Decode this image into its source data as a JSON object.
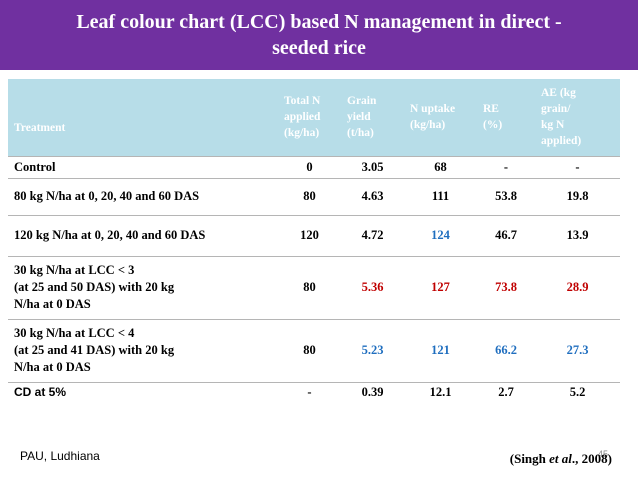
{
  "title": {
    "line1": "Leaf colour chart (LCC) based N management in direct -",
    "line2": "seeded rice"
  },
  "colors": {
    "banner": "#7030a0",
    "header_bg": "#b7dde8",
    "highlight_blue": "#1f6ebf",
    "highlight_red": "#c00000"
  },
  "table": {
    "headers": {
      "treatment": "Treatment",
      "total_n": [
        "Total N",
        "applied",
        "(kg/ha)"
      ],
      "grain_yield": [
        "Grain",
        "yield",
        "(t/ha)"
      ],
      "n_uptake": [
        "N uptake",
        "(kg/ha)"
      ],
      "re": [
        "RE",
        "(%)"
      ],
      "ae": [
        "AE (kg",
        "grain/",
        "kg N",
        "applied)"
      ]
    },
    "rows": [
      {
        "treatment": [
          "Control"
        ],
        "total_n": "0",
        "grain_yield": "3.05",
        "n_uptake": "68",
        "re": "-",
        "ae": "-"
      },
      {
        "treatment": [
          "80 kg N/ha at 0, 20, 40 and 60 DAS"
        ],
        "total_n": "80",
        "grain_yield": "4.63",
        "n_uptake": "111",
        "re": "53.8",
        "ae": "19.8"
      },
      {
        "treatment": [
          "120 kg N/ha at 0, 20, 40 and 60 DAS"
        ],
        "total_n": "120",
        "grain_yield": "4.72",
        "n_uptake": "124",
        "re": "46.7",
        "ae": "13.9"
      },
      {
        "treatment": [
          "30 kg N/ha at LCC < 3",
          "(at 25 and 50 DAS) with 20 kg",
          "N/ha at 0 DAS"
        ],
        "total_n": "80",
        "grain_yield": "5.36",
        "n_uptake": "127",
        "re": "73.8",
        "ae": "28.9"
      },
      {
        "treatment": [
          "30 kg N/ha at LCC < 4",
          "(at 25 and 41 DAS) with 20 kg",
          "N/ha at 0 DAS"
        ],
        "total_n": "80",
        "grain_yield": "5.23",
        "n_uptake": "121",
        "re": "66.2",
        "ae": "27.3"
      },
      {
        "treatment": [
          "CD at 5%"
        ],
        "total_n": "-",
        "grain_yield": "0.39",
        "n_uptake": "12.1",
        "re": "2.7",
        "ae": "5.2"
      }
    ]
  },
  "footer": {
    "institution": "PAU, Ludhiana",
    "citation_prefix": "(Singh ",
    "citation_italic": "et al",
    "citation_suffix": "., 2008)",
    "page_number": "45"
  }
}
